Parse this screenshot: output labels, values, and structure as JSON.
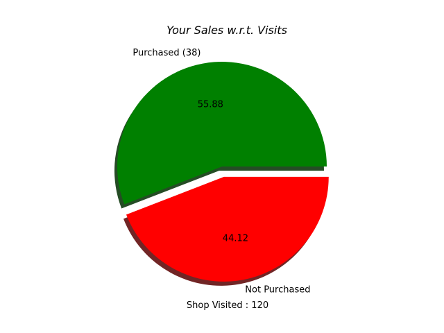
{
  "chart_data": {
    "type": "pie",
    "title": "Your Sales w.r.t. Visits",
    "xlabel": "Shop Visited : 120",
    "slices": [
      {
        "label": "Purchased (38)",
        "value": 55.88,
        "pct_label": "55.88",
        "color": "#008000",
        "explode": 0.0
      },
      {
        "label": "Not Purchased",
        "value": 44.12,
        "pct_label": "44.12",
        "color": "#ff0000",
        "explode": 0.1
      }
    ],
    "start_angle_deg": 0,
    "direction": "counterclockwise",
    "shadow": true
  }
}
